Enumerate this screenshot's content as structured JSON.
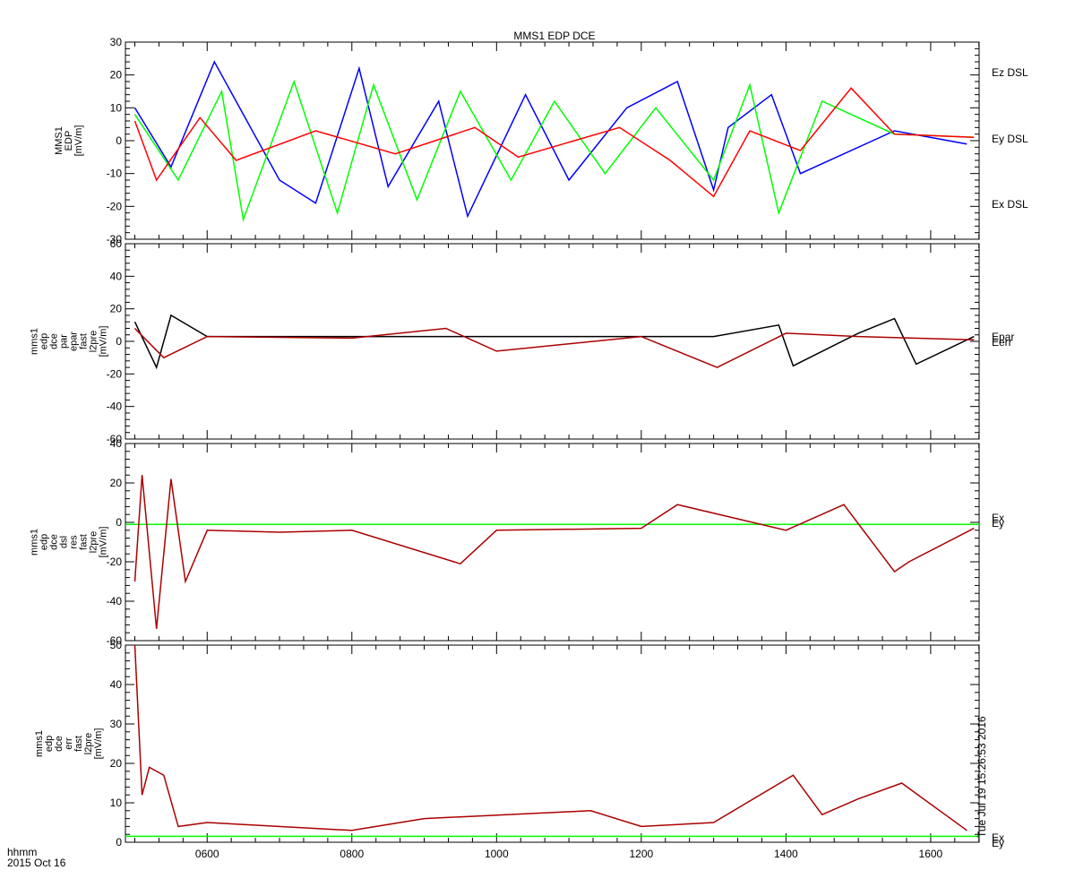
{
  "title": "MMS1 EDP DCE",
  "time_axis": {
    "format_label": "hhmm",
    "date_label": "2015 Oct 16",
    "ticks": [
      "0600",
      "0800",
      "1000",
      "1200",
      "1400",
      "1600"
    ],
    "tick_hours": [
      6,
      8,
      10,
      12,
      14,
      16
    ],
    "range_hours": [
      4.87,
      16.67
    ]
  },
  "side_stamp": "Tue Jul 19 15:26:53 2016",
  "colors": {
    "blue": "#0000ff",
    "green": "#00ff00",
    "red": "#ff0000",
    "darkred": "#aa0000",
    "black": "#000000"
  },
  "chart_data": [
    {
      "type": "line",
      "panel": "dce_dsl",
      "ylabel_lines": [
        "MMS1",
        "EDP",
        "[mV/m]"
      ],
      "ylim": [
        -30,
        30
      ],
      "yticks": [
        -30,
        -20,
        -10,
        0,
        10,
        20,
        30
      ],
      "legend": [
        {
          "label": "Ez DSL",
          "color": "#ff0000"
        },
        {
          "label": "Ey DSL",
          "color": "#00ff00"
        },
        {
          "label": "Ex DSL",
          "color": "#0000ff"
        }
      ],
      "series": [
        {
          "name": "Ex DSL",
          "color": "#0000ff",
          "x": [
            5.0,
            5.5,
            6.1,
            7.0,
            7.5,
            8.1,
            8.5,
            9.2,
            9.6,
            10.4,
            11.0,
            11.8,
            12.5,
            13.0,
            13.2,
            13.8,
            14.2,
            15.5,
            16.5
          ],
          "y": [
            10,
            -8,
            24,
            -12,
            -19,
            22,
            -14,
            12,
            -23,
            14,
            -12,
            10,
            18,
            -15,
            4,
            14,
            -10,
            3,
            -1
          ]
        },
        {
          "name": "Ey DSL",
          "color": "#00ff00",
          "x": [
            5.0,
            5.6,
            6.2,
            6.5,
            7.2,
            7.8,
            8.3,
            8.9,
            9.5,
            10.2,
            10.8,
            11.5,
            12.2,
            13.0,
            13.5,
            13.9,
            14.5,
            15.5,
            16.6
          ],
          "y": [
            8,
            -12,
            15,
            -24,
            18,
            -22,
            17,
            -18,
            15,
            -12,
            12,
            -10,
            10,
            -12,
            17,
            -22,
            12,
            2,
            1
          ]
        },
        {
          "name": "Ez DSL",
          "color": "#ff0000",
          "x": [
            5.0,
            5.3,
            5.9,
            6.4,
            7.5,
            8.6,
            9.7,
            10.3,
            11.7,
            12.4,
            13.0,
            13.5,
            14.2,
            14.9,
            15.5,
            16.6
          ],
          "y": [
            6,
            -12,
            7,
            -6,
            3,
            -4,
            4,
            -5,
            4,
            -6,
            -17,
            3,
            -3,
            16,
            2,
            1
          ]
        }
      ]
    },
    {
      "type": "line",
      "panel": "dce_par_epar",
      "ylabel_lines": [
        "mms1",
        "edp",
        "dce",
        "par",
        "epar",
        "fast",
        "l2pre",
        "[mV/m]"
      ],
      "ylim": [
        -60,
        60
      ],
      "yticks": [
        -60,
        -40,
        -20,
        0,
        20,
        40,
        60
      ],
      "legend": [
        {
          "label": "Epar",
          "color": "#aa0000"
        },
        {
          "label": "Eerr",
          "color": "#000000"
        }
      ],
      "series": [
        {
          "name": "Eerr",
          "color": "#000000",
          "x": [
            5.0,
            5.3,
            5.5,
            6.0,
            8.0,
            10.0,
            12.0,
            13.0,
            13.9,
            14.1,
            15.0,
            15.5,
            15.8,
            16.6
          ],
          "y": [
            12,
            -16,
            16,
            3,
            3,
            3,
            3,
            3,
            10,
            -15,
            5,
            14,
            -14,
            3
          ]
        },
        {
          "name": "Epar",
          "color": "#aa0000",
          "x": [
            5.0,
            5.4,
            6.0,
            8.0,
            9.3,
            10.0,
            12.0,
            13.05,
            14.0,
            15.0,
            16.6
          ],
          "y": [
            8,
            -10,
            3,
            2,
            8,
            -6,
            3,
            -16,
            5,
            3,
            1
          ]
        }
      ]
    },
    {
      "type": "line",
      "panel": "dce_dsl_res",
      "ylabel_lines": [
        "mms1",
        "edp",
        "dce",
        "dsl",
        "res",
        "fast",
        "l2pre",
        "[mV/m]"
      ],
      "ylim": [
        -60,
        40
      ],
      "yticks": [
        -60,
        -40,
        -20,
        0,
        20,
        40
      ],
      "legend": [
        {
          "label": "Ex",
          "color": "#aa0000"
        },
        {
          "label": "Ey",
          "color": "#00ff00"
        }
      ],
      "series": [
        {
          "name": "Ey",
          "color": "#00ff00",
          "x": [
            4.87,
            16.67
          ],
          "y": [
            -1,
            -1
          ]
        },
        {
          "name": "Ex",
          "color": "#aa0000",
          "x": [
            5.0,
            5.1,
            5.3,
            5.5,
            5.7,
            6.0,
            7.0,
            8.0,
            9.5,
            10.0,
            12.0,
            12.5,
            14.0,
            14.8,
            15.5,
            15.7,
            16.6
          ],
          "y": [
            -30,
            24,
            -54,
            22,
            -30,
            -4,
            -5,
            -4,
            -21,
            -4,
            -3,
            9,
            -4,
            9,
            -25,
            -20,
            -3
          ]
        }
      ]
    },
    {
      "type": "line",
      "panel": "dce_err",
      "ylabel_lines": [
        "mms1",
        "edp",
        "dce",
        "err",
        "fast",
        "l2pre",
        "[mV/m]"
      ],
      "ylim": [
        0,
        50
      ],
      "yticks": [
        0,
        10,
        20,
        30,
        40,
        50
      ],
      "legend": [
        {
          "label": "Ex",
          "color": "#aa0000"
        },
        {
          "label": "Ey",
          "color": "#00ff00"
        }
      ],
      "series": [
        {
          "name": "Ey",
          "color": "#00ff00",
          "x": [
            4.87,
            16.67
          ],
          "y": [
            1.5,
            1.5
          ]
        },
        {
          "name": "Ex",
          "color": "#aa0000",
          "x": [
            5.0,
            5.1,
            5.2,
            5.4,
            5.6,
            6.0,
            8.0,
            9.0,
            11.3,
            12.0,
            13.0,
            14.1,
            14.5,
            15.0,
            15.6,
            16.5
          ],
          "y": [
            50,
            12,
            19,
            17,
            4,
            5,
            3,
            6,
            8,
            4,
            5,
            17,
            7,
            11,
            15,
            3
          ]
        }
      ]
    }
  ]
}
